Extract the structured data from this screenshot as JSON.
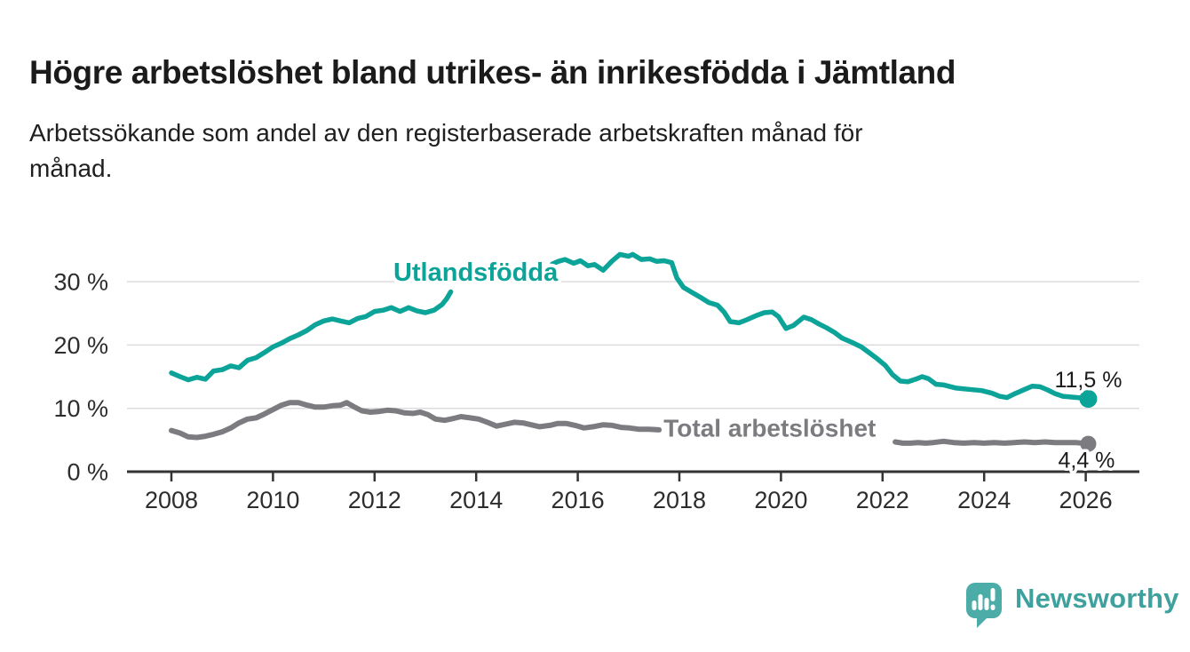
{
  "header": {
    "title": "Högre arbetslöshet bland utrikes- än inrikesfödda i Jämtland",
    "subtitle_lines": [
      "Arbetssökande som andel av den registerbaserade arbetskraften månad för",
      "månad."
    ]
  },
  "footer": {
    "brand": "Newsworthy",
    "logo_icon": "bar-chart-speech-bubble-icon"
  },
  "colors": {
    "accent_teal": "#0CA398",
    "line_gray": "#7B7B80",
    "grid": "#DCDCDC",
    "axis": "#333333",
    "tick_text": "#2D2D2D",
    "value_text": "#1B1B1B",
    "logo_icon": "#4BACA8",
    "logo_text": "#3EA19E"
  },
  "chart_data": {
    "type": "line",
    "title": "Högre arbetslöshet bland utrikes- än inrikesfödda i Jämtland",
    "subtitle": "Arbetssökande som andel av den registerbaserade arbetskraften månad för månad.",
    "unit": "%",
    "grid": true,
    "legend_position": "inline-labels",
    "x_axis": {
      "ticks": [
        2008,
        2010,
        2012,
        2014,
        2016,
        2018,
        2020,
        2022,
        2024,
        2026
      ],
      "range": [
        2007.13,
        2027.06
      ]
    },
    "y_axis": {
      "tick_values": [
        0,
        10,
        20,
        30
      ],
      "tick_labels": [
        "0 %",
        "10 %",
        "20 %",
        "30 %"
      ],
      "range": [
        0,
        36.6
      ]
    },
    "series": [
      {
        "name": "Utlandsfödda",
        "slug": "utlandsfodda",
        "color": "#0CA398",
        "line_width": 5.5,
        "label_anchor": {
          "x": 2012.37,
          "y": 31.4
        },
        "end_value": 11.5,
        "end_label": "11,5 %",
        "end_label_side": "above",
        "segments": [
          [
            [
              2008.0,
              15.6
            ],
            [
              2008.17,
              15.0
            ],
            [
              2008.33,
              14.5
            ],
            [
              2008.5,
              14.9
            ],
            [
              2008.67,
              14.6
            ],
            [
              2008.83,
              15.9
            ],
            [
              2009.0,
              16.1
            ],
            [
              2009.17,
              16.7
            ],
            [
              2009.33,
              16.4
            ],
            [
              2009.5,
              17.6
            ],
            [
              2009.67,
              18.0
            ],
            [
              2009.83,
              18.8
            ],
            [
              2010.0,
              19.7
            ],
            [
              2010.17,
              20.3
            ],
            [
              2010.33,
              21.0
            ],
            [
              2010.5,
              21.6
            ],
            [
              2010.67,
              22.3
            ],
            [
              2010.83,
              23.2
            ],
            [
              2011.0,
              23.8
            ],
            [
              2011.17,
              24.1
            ],
            [
              2011.33,
              23.8
            ],
            [
              2011.5,
              23.5
            ],
            [
              2011.67,
              24.2
            ],
            [
              2011.83,
              24.5
            ],
            [
              2012.0,
              25.3
            ],
            [
              2012.17,
              25.5
            ],
            [
              2012.33,
              25.9
            ],
            [
              2012.5,
              25.3
            ],
            [
              2012.67,
              25.9
            ],
            [
              2012.83,
              25.4
            ],
            [
              2013.0,
              25.1
            ],
            [
              2013.17,
              25.5
            ],
            [
              2013.33,
              26.4
            ],
            [
              2013.42,
              27.3
            ],
            [
              2013.5,
              28.4
            ]
          ],
          [
            [
              2015.5,
              32.8
            ],
            [
              2015.62,
              33.2
            ],
            [
              2015.75,
              33.5
            ],
            [
              2015.92,
              32.9
            ],
            [
              2016.05,
              33.3
            ],
            [
              2016.2,
              32.5
            ],
            [
              2016.33,
              32.7
            ],
            [
              2016.5,
              31.8
            ],
            [
              2016.67,
              33.2
            ],
            [
              2016.83,
              34.3
            ],
            [
              2017.0,
              34.0
            ],
            [
              2017.08,
              34.3
            ],
            [
              2017.25,
              33.5
            ],
            [
              2017.42,
              33.6
            ],
            [
              2017.55,
              33.2
            ],
            [
              2017.7,
              33.3
            ],
            [
              2017.85,
              33.0
            ],
            [
              2017.95,
              30.6
            ],
            [
              2018.08,
              29.1
            ],
            [
              2018.25,
              28.3
            ],
            [
              2018.42,
              27.5
            ],
            [
              2018.58,
              26.7
            ],
            [
              2018.75,
              26.3
            ],
            [
              2018.88,
              25.2
            ],
            [
              2019.0,
              23.7
            ],
            [
              2019.17,
              23.5
            ],
            [
              2019.33,
              24.0
            ],
            [
              2019.5,
              24.6
            ],
            [
              2019.67,
              25.1
            ],
            [
              2019.83,
              25.2
            ],
            [
              2019.95,
              24.5
            ],
            [
              2020.1,
              22.6
            ],
            [
              2020.25,
              23.1
            ],
            [
              2020.45,
              24.4
            ],
            [
              2020.6,
              24.0
            ],
            [
              2020.75,
              23.3
            ],
            [
              2020.9,
              22.7
            ],
            [
              2021.05,
              22.0
            ],
            [
              2021.2,
              21.1
            ],
            [
              2021.4,
              20.4
            ],
            [
              2021.58,
              19.7
            ],
            [
              2021.75,
              18.7
            ],
            [
              2021.9,
              17.8
            ],
            [
              2022.05,
              16.8
            ],
            [
              2022.2,
              15.3
            ],
            [
              2022.35,
              14.3
            ],
            [
              2022.5,
              14.2
            ],
            [
              2022.65,
              14.6
            ],
            [
              2022.78,
              15.0
            ],
            [
              2022.9,
              14.7
            ],
            [
              2023.05,
              13.8
            ],
            [
              2023.2,
              13.7
            ],
            [
              2023.45,
              13.2
            ],
            [
              2023.7,
              13.0
            ],
            [
              2023.95,
              12.8
            ],
            [
              2024.15,
              12.4
            ],
            [
              2024.3,
              11.9
            ],
            [
              2024.45,
              11.7
            ],
            [
              2024.6,
              12.3
            ],
            [
              2024.8,
              13.0
            ],
            [
              2024.95,
              13.5
            ],
            [
              2025.1,
              13.4
            ],
            [
              2025.25,
              12.9
            ],
            [
              2025.4,
              12.3
            ],
            [
              2025.55,
              11.9
            ],
            [
              2025.7,
              11.8
            ],
            [
              2025.85,
              11.7
            ],
            [
              2026.05,
              11.5
            ]
          ]
        ]
      },
      {
        "name": "Total arbetslöshet",
        "slug": "total-arbetsloshet",
        "color": "#7B7B80",
        "line_width": 6,
        "label_anchor": {
          "x": 2017.69,
          "y": 6.9
        },
        "end_value": 4.4,
        "end_label": "4,4 %",
        "end_label_side": "below",
        "segments": [
          [
            [
              2008.0,
              6.5
            ],
            [
              2008.17,
              6.1
            ],
            [
              2008.33,
              5.5
            ],
            [
              2008.5,
              5.4
            ],
            [
              2008.67,
              5.6
            ],
            [
              2008.83,
              5.9
            ],
            [
              2009.0,
              6.3
            ],
            [
              2009.17,
              6.9
            ],
            [
              2009.33,
              7.7
            ],
            [
              2009.5,
              8.3
            ],
            [
              2009.67,
              8.5
            ],
            [
              2009.83,
              9.1
            ],
            [
              2010.0,
              9.8
            ],
            [
              2010.17,
              10.5
            ],
            [
              2010.33,
              10.9
            ],
            [
              2010.5,
              10.9
            ],
            [
              2010.67,
              10.5
            ],
            [
              2010.83,
              10.2
            ],
            [
              2011.0,
              10.2
            ],
            [
              2011.17,
              10.4
            ],
            [
              2011.33,
              10.5
            ],
            [
              2011.45,
              10.9
            ],
            [
              2011.58,
              10.3
            ],
            [
              2011.75,
              9.6
            ],
            [
              2011.92,
              9.4
            ],
            [
              2012.08,
              9.5
            ],
            [
              2012.25,
              9.7
            ],
            [
              2012.42,
              9.6
            ],
            [
              2012.58,
              9.3
            ],
            [
              2012.75,
              9.2
            ],
            [
              2012.9,
              9.4
            ],
            [
              2013.05,
              9.0
            ],
            [
              2013.2,
              8.3
            ],
            [
              2013.38,
              8.1
            ],
            [
              2013.55,
              8.4
            ],
            [
              2013.7,
              8.7
            ],
            [
              2013.88,
              8.5
            ],
            [
              2014.05,
              8.3
            ],
            [
              2014.22,
              7.8
            ],
            [
              2014.4,
              7.2
            ],
            [
              2014.58,
              7.5
            ],
            [
              2014.75,
              7.8
            ],
            [
              2014.92,
              7.7
            ],
            [
              2015.08,
              7.4
            ],
            [
              2015.25,
              7.1
            ],
            [
              2015.45,
              7.3
            ],
            [
              2015.6,
              7.6
            ],
            [
              2015.78,
              7.6
            ],
            [
              2015.95,
              7.3
            ],
            [
              2016.12,
              6.9
            ],
            [
              2016.3,
              7.1
            ],
            [
              2016.5,
              7.4
            ],
            [
              2016.68,
              7.3
            ],
            [
              2016.85,
              7.0
            ],
            [
              2017.02,
              6.9
            ],
            [
              2017.2,
              6.7
            ],
            [
              2017.4,
              6.7
            ],
            [
              2017.6,
              6.6
            ]
          ],
          [
            [
              2022.25,
              4.7
            ],
            [
              2022.4,
              4.5
            ],
            [
              2022.55,
              4.5
            ],
            [
              2022.7,
              4.6
            ],
            [
              2022.85,
              4.5
            ],
            [
              2023.0,
              4.6
            ],
            [
              2023.2,
              4.8
            ],
            [
              2023.4,
              4.6
            ],
            [
              2023.6,
              4.5
            ],
            [
              2023.8,
              4.6
            ],
            [
              2024.0,
              4.5
            ],
            [
              2024.2,
              4.6
            ],
            [
              2024.4,
              4.5
            ],
            [
              2024.6,
              4.6
            ],
            [
              2024.8,
              4.7
            ],
            [
              2025.0,
              4.6
            ],
            [
              2025.2,
              4.7
            ],
            [
              2025.4,
              4.6
            ],
            [
              2025.6,
              4.6
            ],
            [
              2025.8,
              4.6
            ],
            [
              2026.05,
              4.4
            ]
          ]
        ]
      }
    ]
  }
}
